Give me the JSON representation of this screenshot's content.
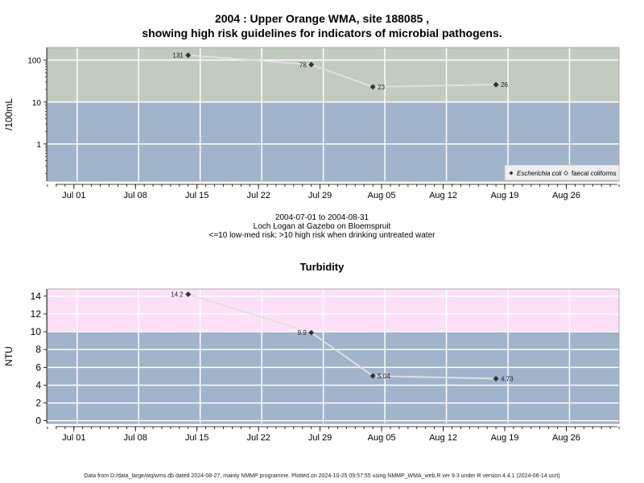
{
  "title_line1": "2004 : Upper Orange WMA, site 188085 ,",
  "title_line2": "showing high risk guidelines for indicators of microbial pathogens.",
  "subtitle_lines": [
    "2004-07-01 to 2004-08-31",
    "Loch Logan at Gazebo on Bloemspruit",
    "<=10 low-med risk; >10 high risk when drinking untreated water"
  ],
  "footer": "Data from D:/data_large/wq/wms.db dated 2024-08-27, mainly NMMP programme. Plotted on 2024-10-25 09:57:55 using NMMP_WMA_web.R ver 9.3 under R version 4.4.1 (2024-06-14 ucrt)",
  "colors": {
    "high_risk_upper": "#c2cbbf",
    "low_risk": "#a2b3cc",
    "high_risk_turbidity": "#fde0f8",
    "line": "#e0e0e0",
    "marker": "#333333",
    "grid": "#ffffff"
  },
  "chart_data": [
    {
      "type": "line",
      "title": "",
      "ylabel": "/100mL",
      "yscale": "log",
      "ylim": [
        0.13,
        200
      ],
      "xlim": [
        "2004-06-28",
        "2004-09-01"
      ],
      "x_ticks": [
        "Jul 01",
        "Jul 08",
        "Jul 15",
        "Jul 22",
        "Jul 29",
        "Aug 05",
        "Aug 12",
        "Aug 19",
        "Aug 26"
      ],
      "x_tick_dates": [
        "2004-07-01",
        "2004-07-08",
        "2004-07-15",
        "2004-07-22",
        "2004-07-29",
        "2004-08-05",
        "2004-08-12",
        "2004-08-19",
        "2004-08-26"
      ],
      "y_ticks": [
        1,
        10,
        100
      ],
      "y_tick_labels": [
        "1",
        "10",
        "100"
      ],
      "threshold": 10,
      "series": [
        {
          "name": "Escherichia coli",
          "marker": "filled-diamond",
          "x": [
            "2004-07-14",
            "2004-07-28",
            "2004-08-04",
            "2004-08-18"
          ],
          "values": [
            131,
            78,
            23,
            26
          ],
          "labels": [
            "131",
            "78",
            "23",
            "26"
          ]
        },
        {
          "name": "faecal coliforms",
          "marker": "open-diamond",
          "x": [],
          "values": [],
          "labels": []
        }
      ],
      "legend_position": "bottom-right"
    },
    {
      "type": "line",
      "title": "Turbidity",
      "ylabel": "NTU",
      "ylim": [
        -0.3,
        14.8
      ],
      "xlim": [
        "2004-06-28",
        "2004-09-01"
      ],
      "x_ticks": [
        "Jul 01",
        "Jul 08",
        "Jul 15",
        "Jul 22",
        "Jul 29",
        "Aug 05",
        "Aug 12",
        "Aug 19",
        "Aug 26"
      ],
      "x_tick_dates": [
        "2004-07-01",
        "2004-07-08",
        "2004-07-15",
        "2004-07-22",
        "2004-07-29",
        "2004-08-05",
        "2004-08-12",
        "2004-08-19",
        "2004-08-26"
      ],
      "y_ticks": [
        0,
        2,
        4,
        6,
        8,
        10,
        12,
        14
      ],
      "y_tick_labels": [
        "0",
        "2",
        "4",
        "6",
        "8",
        "10",
        "12",
        "14"
      ],
      "threshold": 10,
      "series": [
        {
          "x": [
            "2004-07-14",
            "2004-07-28",
            "2004-08-04",
            "2004-08-18"
          ],
          "values": [
            14.2,
            9.9,
            5.04,
            4.73
          ],
          "labels": [
            "14.2",
            "9.9",
            "5.04",
            "4.73"
          ]
        }
      ]
    }
  ]
}
